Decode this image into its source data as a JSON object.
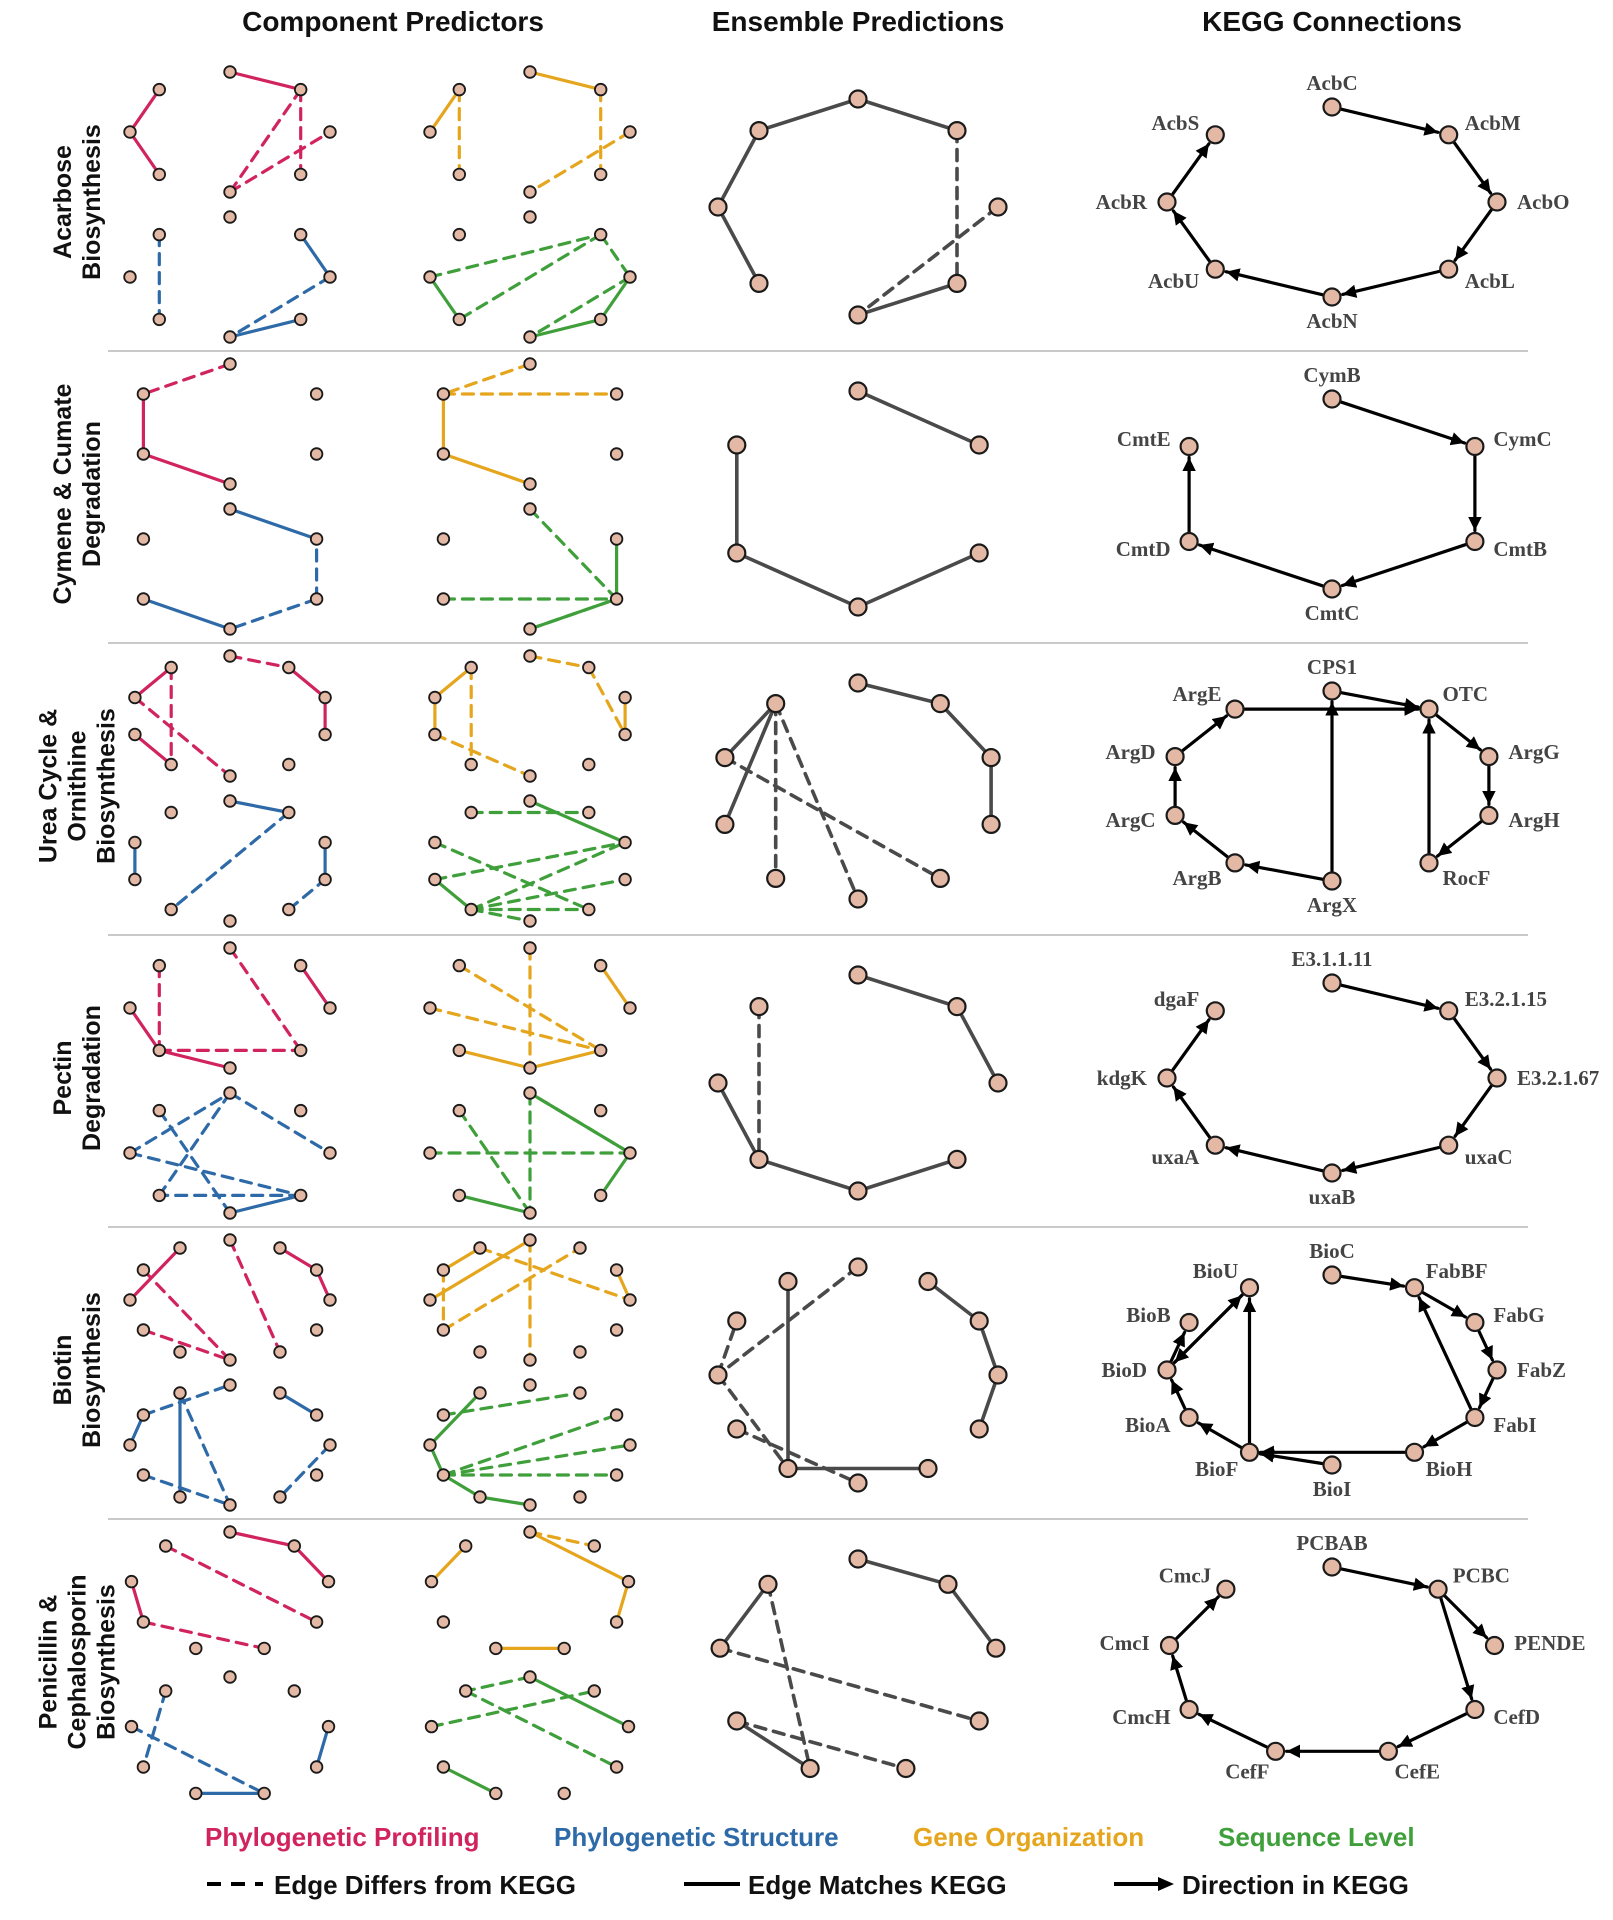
{
  "column_titles": {
    "component": "Component Predictors",
    "ensemble": "Ensemble Predictions",
    "kegg": "KEGG Connections"
  },
  "colors": {
    "phylogenetic_profiling": "#d1245f",
    "phylogenetic_structure": "#2e6aa8",
    "gene_organization": "#e5a51c",
    "sequence_level": "#3f9f3a",
    "ensemble_edge": "#4a4a4a",
    "node_fill": "#e3b9a5",
    "node_stroke": "#1a1a1a",
    "separator": "#c9c9c9"
  },
  "legend": {
    "categories": [
      {
        "label": "Phylogenetic Profiling",
        "color": "#d1245f"
      },
      {
        "label": "Phylogenetic Structure",
        "color": "#2e6aa8"
      },
      {
        "label": "Gene Organization",
        "color": "#e5a51c"
      },
      {
        "label": "Sequence Level",
        "color": "#3f9f3a"
      }
    ],
    "edge_differs": "Edge Differs from KEGG",
    "edge_matches": "Edge Matches KEGG",
    "direction": "Direction in KEGG"
  },
  "pathways": [
    {
      "label": "Acarbose\nBiosynthesis",
      "kegg_nodes": [
        "AcbC",
        "AcbM",
        "AcbO",
        "AcbL",
        "AcbN",
        "AcbU",
        "AcbR",
        "AcbS"
      ],
      "kegg_edges": [
        [
          0,
          1
        ],
        [
          1,
          2
        ],
        [
          2,
          3
        ],
        [
          3,
          4
        ],
        [
          4,
          5
        ],
        [
          5,
          6
        ],
        [
          6,
          7
        ]
      ],
      "ensemble_solid": [
        [
          0,
          7
        ],
        [
          6,
          7
        ],
        [
          6,
          5
        ],
        [
          0,
          1
        ],
        [
          3,
          4
        ]
      ],
      "ensemble_dashed": [
        [
          1,
          3
        ],
        [
          2,
          4
        ]
      ],
      "predictors": {
        "pp": {
          "solid": [
            [
              6,
              7
            ],
            [
              6,
              5
            ],
            [
              0,
              1
            ]
          ],
          "dashed": [
            [
              4,
              1
            ],
            [
              4,
              2
            ],
            [
              1,
              3
            ]
          ]
        },
        "ps": {
          "solid": [
            [
              1,
              2
            ],
            [
              3,
              4
            ]
          ],
          "dashed": [
            [
              7,
              5
            ],
            [
              2,
              4
            ]
          ]
        },
        "go": {
          "solid": [
            [
              6,
              7
            ],
            [
              0,
              1
            ]
          ],
          "dashed": [
            [
              7,
              5
            ],
            [
              1,
              3
            ],
            [
              2,
              4
            ]
          ]
        },
        "sl": {
          "solid": [
            [
              6,
              5
            ],
            [
              2,
              3
            ],
            [
              3,
              4
            ]
          ],
          "dashed": [
            [
              6,
              1
            ],
            [
              1,
              2
            ],
            [
              1,
              5
            ],
            [
              2,
              4
            ]
          ]
        }
      }
    },
    {
      "label": "Cymene & Cumate\nDegradation",
      "kegg_nodes": [
        "CymB",
        "CymC",
        "CmtB",
        "CmtC",
        "CmtD",
        "CmtE"
      ],
      "kegg_edges": [
        [
          0,
          1
        ],
        [
          1,
          2
        ],
        [
          2,
          3
        ],
        [
          3,
          4
        ],
        [
          4,
          5
        ]
      ],
      "ensemble_solid": [
        [
          0,
          1
        ],
        [
          5,
          4
        ],
        [
          4,
          3
        ],
        [
          3,
          2
        ]
      ],
      "ensemble_dashed": [],
      "predictors": {
        "pp": {
          "solid": [
            [
              5,
              4
            ],
            [
              4,
              3
            ]
          ],
          "dashed": [
            [
              0,
              5
            ]
          ]
        },
        "ps": {
          "solid": [
            [
              0,
              1
            ],
            [
              3,
              4
            ]
          ],
          "dashed": [
            [
              2,
              3
            ],
            [
              2,
              1
            ]
          ]
        },
        "go": {
          "solid": [
            [
              5,
              4
            ],
            [
              4,
              3
            ]
          ],
          "dashed": [
            [
              0,
              5
            ],
            [
              5,
              1
            ]
          ]
        },
        "sl": {
          "solid": [
            [
              1,
              2
            ],
            [
              2,
              3
            ]
          ],
          "dashed": [
            [
              0,
              2
            ],
            [
              4,
              2
            ],
            [
              3,
              2
            ]
          ]
        }
      }
    },
    {
      "label": "Urea Cycle &\nOrnithine\nBiosynthesis",
      "kegg_nodes": [
        "CPS1",
        "OTC",
        "ArgG",
        "ArgH",
        "RocF",
        "ArgX",
        "ArgB",
        "ArgC",
        "ArgD",
        "ArgE"
      ],
      "kegg_edges": [
        [
          0,
          1
        ],
        [
          9,
          1
        ],
        [
          5,
          0
        ],
        [
          4,
          1
        ],
        [
          1,
          2
        ],
        [
          2,
          3
        ],
        [
          3,
          4
        ],
        [
          5,
          6
        ],
        [
          6,
          7
        ],
        [
          7,
          8
        ],
        [
          8,
          9
        ]
      ],
      "ensemble_solid": [
        [
          0,
          1
        ],
        [
          1,
          2
        ],
        [
          2,
          3
        ],
        [
          7,
          9
        ],
        [
          9,
          8
        ]
      ],
      "ensemble_dashed": [
        [
          9,
          5
        ],
        [
          9,
          6
        ],
        [
          8,
          4
        ]
      ],
      "predictors": {
        "pp": {
          "solid": [
            [
              9,
              8
            ],
            [
              7,
              6
            ],
            [
              1,
              2
            ],
            [
              2,
              3
            ]
          ],
          "dashed": [
            [
              8,
              5
            ],
            [
              0,
              1
            ],
            [
              9,
              6
            ]
          ]
        },
        "ps": {
          "solid": [
            [
              7,
              8
            ],
            [
              0,
              1
            ],
            [
              3,
              2
            ]
          ],
          "dashed": [
            [
              1,
              6
            ],
            [
              4,
              3
            ]
          ]
        },
        "go": {
          "solid": [
            [
              9,
              8
            ],
            [
              8,
              7
            ],
            [
              2,
              3
            ]
          ],
          "dashed": [
            [
              9,
              6
            ],
            [
              0,
              1
            ],
            [
              1,
              3
            ],
            [
              7,
              5
            ]
          ]
        },
        "sl": {
          "solid": [
            [
              0,
              2
            ],
            [
              7,
              6
            ]
          ],
          "dashed": [
            [
              9,
              1
            ],
            [
              7,
              2
            ],
            [
              6,
              2
            ],
            [
              6,
              3
            ],
            [
              6,
              5
            ],
            [
              6,
              4
            ],
            [
              8,
              4
            ]
          ]
        }
      }
    },
    {
      "label": "Pectin\nDegradation",
      "kegg_nodes": [
        "E3.1.1.11",
        "E3.2.1.15",
        "E3.2.1.67",
        "uxaC",
        "uxaB",
        "uxaA",
        "kdgK",
        "dgaF"
      ],
      "kegg_edges": [
        [
          0,
          1
        ],
        [
          1,
          2
        ],
        [
          2,
          3
        ],
        [
          3,
          4
        ],
        [
          4,
          5
        ],
        [
          5,
          6
        ],
        [
          6,
          7
        ]
      ],
      "ensemble_solid": [
        [
          0,
          1
        ],
        [
          1,
          2
        ],
        [
          6,
          5
        ],
        [
          5,
          4
        ],
        [
          4,
          3
        ]
      ],
      "ensemble_dashed": [
        [
          7,
          5
        ]
      ],
      "predictors": {
        "pp": {
          "solid": [
            [
              6,
              5
            ],
            [
              5,
              4
            ],
            [
              1,
              2
            ]
          ],
          "dashed": [
            [
              7,
              5
            ],
            [
              0,
              3
            ],
            [
              5,
              3
            ]
          ]
        },
        "ps": {
          "solid": [
            [
              4,
              3
            ]
          ],
          "dashed": [
            [
              6,
              0
            ],
            [
              6,
              3
            ],
            [
              7,
              4
            ],
            [
              0,
              5
            ],
            [
              0,
              2
            ],
            [
              3,
              5
            ]
          ]
        },
        "go": {
          "solid": [
            [
              5,
              4
            ],
            [
              4,
              3
            ],
            [
              1,
              2
            ]
          ],
          "dashed": [
            [
              0,
              4
            ],
            [
              6,
              3
            ],
            [
              7,
              3
            ]
          ]
        },
        "sl": {
          "solid": [
            [
              0,
              2
            ],
            [
              5,
              4
            ],
            [
              2,
              3
            ]
          ],
          "dashed": [
            [
              0,
              4
            ],
            [
              6,
              2
            ],
            [
              7,
              4
            ],
            [
              2,
              0
            ]
          ]
        }
      }
    },
    {
      "label": "Biotin\nBiosynthesis",
      "kegg_nodes": [
        "BioC",
        "FabBF",
        "FabG",
        "FabZ",
        "FabI",
        "BioH",
        "BioI",
        "BioF",
        "BioA",
        "BioD",
        "BioB",
        "BioU"
      ],
      "kegg_edges": [
        [
          0,
          1
        ],
        [
          1,
          2
        ],
        [
          2,
          3
        ],
        [
          3,
          4
        ],
        [
          4,
          1
        ],
        [
          4,
          5
        ],
        [
          5,
          7
        ],
        [
          6,
          7
        ],
        [
          7,
          11
        ],
        [
          7,
          8
        ],
        [
          8,
          9
        ],
        [
          9,
          10
        ],
        [
          9,
          11
        ],
        [
          11,
          9
        ]
      ],
      "ensemble_solid": [
        [
          1,
          2
        ],
        [
          2,
          3
        ],
        [
          3,
          4
        ],
        [
          11,
          7
        ],
        [
          7,
          5
        ]
      ],
      "ensemble_dashed": [
        [
          0,
          9
        ],
        [
          9,
          7
        ],
        [
          9,
          10
        ],
        [
          8,
          6
        ]
      ],
      "predictors": {
        "pp": {
          "solid": [
            [
              11,
              9
            ],
            [
              1,
              2
            ],
            [
              2,
              3
            ]
          ],
          "dashed": [
            [
              0,
              5
            ],
            [
              10,
              6
            ],
            [
              8,
              6
            ]
          ]
        },
        "ps": {
          "solid": [
            [
              11,
              7
            ],
            [
              9,
              10
            ],
            [
              1,
              2
            ]
          ],
          "dashed": [
            [
              10,
              0
            ],
            [
              8,
              6
            ],
            [
              11,
              6
            ],
            [
              3,
              5
            ]
          ]
        },
        "go": {
          "solid": [
            [
              9,
              0
            ],
            [
              11,
              10
            ],
            [
              2,
              3
            ]
          ],
          "dashed": [
            [
              0,
              6
            ],
            [
              8,
              1
            ],
            [
              11,
              3
            ],
            [
              10,
              8
            ]
          ]
        },
        "sl": {
          "solid": [
            [
              9,
              8
            ],
            [
              8,
              7
            ],
            [
              7,
              6
            ],
            [
              11,
              9
            ]
          ],
          "dashed": [
            [
              10,
              1
            ],
            [
              8,
              2
            ],
            [
              8,
              3
            ],
            [
              8,
              4
            ]
          ]
        }
      }
    },
    {
      "label": "Penicillin &\nCephalosporin\nBiosynthesis",
      "kegg_nodes": [
        "PCBAB",
        "PCBC",
        "PENDE",
        "CefD",
        "CefE",
        "CefF",
        "CmcH",
        "CmcI",
        "CmcJ"
      ],
      "kegg_edges": [
        [
          0,
          1
        ],
        [
          1,
          2
        ],
        [
          1,
          3
        ],
        [
          3,
          4
        ],
        [
          4,
          5
        ],
        [
          5,
          6
        ],
        [
          6,
          7
        ],
        [
          7,
          8
        ]
      ],
      "ensemble_solid": [
        [
          0,
          1
        ],
        [
          1,
          2
        ],
        [
          7,
          8
        ],
        [
          6,
          5
        ]
      ],
      "ensemble_dashed": [
        [
          7,
          3
        ],
        [
          6,
          4
        ],
        [
          8,
          5
        ]
      ],
      "predictors": {
        "pp": {
          "solid": [
            [
              0,
              1
            ],
            [
              1,
              2
            ],
            [
              7,
              6
            ]
          ],
          "dashed": [
            [
              8,
              3
            ],
            [
              6,
              4
            ]
          ]
        },
        "ps": {
          "solid": [
            [
              2,
              3
            ],
            [
              5,
              4
            ]
          ],
          "dashed": [
            [
              8,
              6
            ],
            [
              7,
              4
            ]
          ]
        },
        "go": {
          "solid": [
            [
              0,
              2
            ],
            [
              2,
              3
            ],
            [
              8,
              7
            ],
            [
              4,
              5
            ]
          ],
          "dashed": [
            [
              0,
              1
            ]
          ]
        },
        "sl": {
          "solid": [
            [
              0,
              2
            ],
            [
              6,
              5
            ]
          ],
          "dashed": [
            [
              7,
              1
            ],
            [
              8,
              3
            ],
            [
              0,
              8
            ]
          ]
        }
      }
    }
  ]
}
